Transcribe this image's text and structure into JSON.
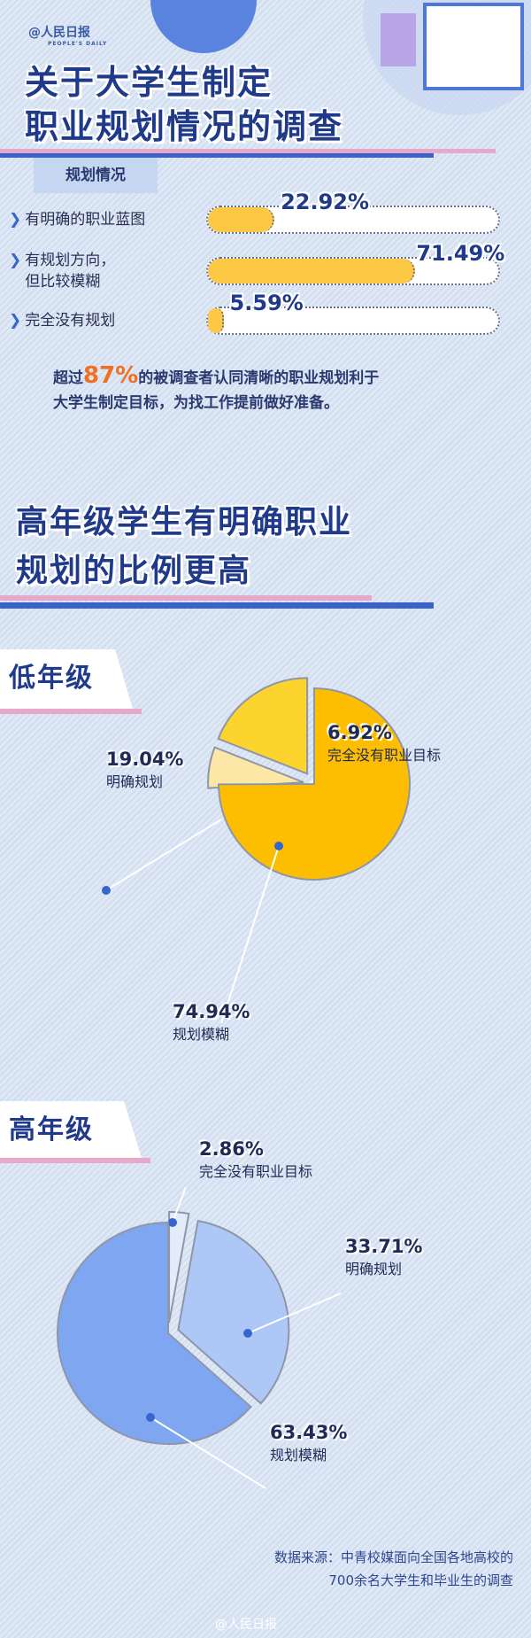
{
  "header": {
    "logo_text": "人民日报",
    "logo_sub": "PEOPLE'S DAILY",
    "title_line1": "关于大学生制定",
    "title_line2": "职业规划情况的调查"
  },
  "planning": {
    "tag": "规划情况",
    "rows": [
      {
        "label_lines": [
          "有明确的职业蓝图"
        ],
        "value": 22.92,
        "value_label": "22.92%"
      },
      {
        "label_lines": [
          "有规划方向，",
          "但比较模糊"
        ],
        "value": 71.49,
        "value_label": "71.49%"
      },
      {
        "label_lines": [
          "完全没有规划"
        ],
        "value": 5.59,
        "value_label": "5.59%"
      }
    ],
    "bar_color": "#fdc843"
  },
  "note": {
    "prefix": "超过",
    "highlight": "87%",
    "suffix": "的被调查者认同清晰的职业规划利于",
    "line2": "大学生制定目标，为找工作提前做好准备。"
  },
  "section2": {
    "title_line1": "高年级学生有明确职业",
    "title_line2": "规划的比例更高"
  },
  "chart_data": [
    {
      "type": "pie",
      "title": "低年级",
      "slices": [
        {
          "label": "完全没有职业目标",
          "value": 6.92,
          "value_label": "6.92%",
          "color": "#fde7a6"
        },
        {
          "label": "明确规划",
          "value": 19.04,
          "value_label": "19.04%",
          "color": "#fdd42e"
        },
        {
          "label": "规划模糊",
          "value": 74.94,
          "value_label": "74.94%",
          "color": "#fdbd00"
        }
      ]
    },
    {
      "type": "pie",
      "title": "高年级",
      "slices": [
        {
          "label": "完全没有职业目标",
          "value": 2.86,
          "value_label": "2.86%",
          "color": "#e3ecfb"
        },
        {
          "label": "明确规划",
          "value": 33.71,
          "value_label": "33.71%",
          "color": "#adc7f7"
        },
        {
          "label": "规划模糊",
          "value": 63.43,
          "value_label": "63.43%",
          "color": "#7fa6f0"
        }
      ]
    }
  ],
  "footer": {
    "source_line1": "数据来源：中青校媒面向全国各地高校的",
    "source_line2": "700余名大学生和毕业生的调查",
    "watermark": "@人民日报"
  }
}
